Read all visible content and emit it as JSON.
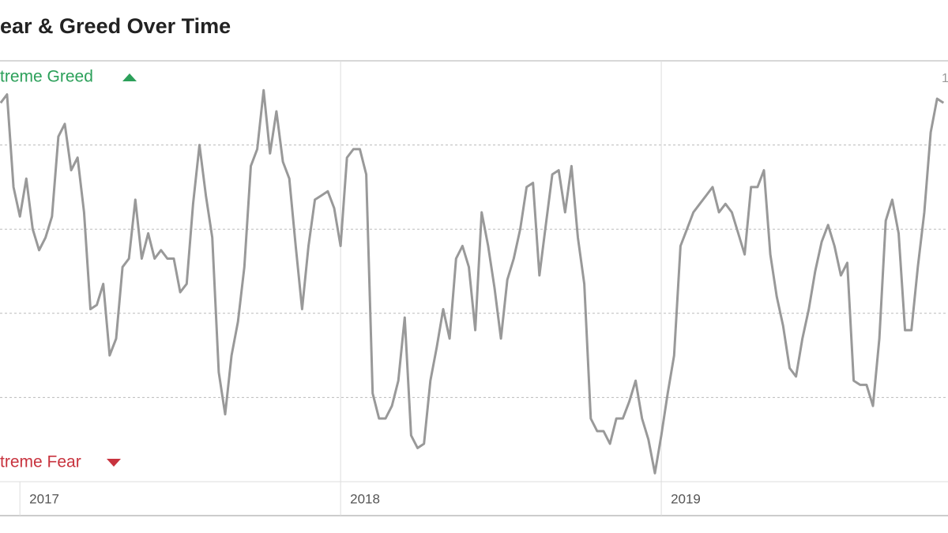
{
  "chart_data": {
    "type": "line",
    "title": "ear & Greed Over Time",
    "annotations": [
      "treme Greed",
      "treme Fear",
      "1"
    ],
    "xlim": [
      2016.938,
      2019.894
    ],
    "xticks": [
      2017,
      2018,
      2019
    ],
    "ylim": [
      0,
      100
    ],
    "yticks": [
      20,
      40,
      60,
      80
    ],
    "grid": true,
    "x": [
      2016.94,
      2016.96,
      2016.98,
      2017,
      2017.02,
      2017.04,
      2017.06,
      2017.08,
      2017.1,
      2017.12,
      2017.14,
      2017.16,
      2017.18,
      2017.2,
      2017.22,
      2017.24,
      2017.26,
      2017.28,
      2017.3,
      2017.32,
      2017.34,
      2017.36,
      2017.38,
      2017.4,
      2017.42,
      2017.44,
      2017.46,
      2017.48,
      2017.5,
      2017.52,
      2017.54,
      2017.56,
      2017.58,
      2017.6,
      2017.62,
      2017.64,
      2017.66,
      2017.68,
      2017.7,
      2017.72,
      2017.74,
      2017.76,
      2017.78,
      2017.8,
      2017.82,
      2017.84,
      2017.86,
      2017.88,
      2017.9,
      2017.92,
      2017.94,
      2017.96,
      2017.98,
      2018,
      2018.02,
      2018.04,
      2018.06,
      2018.08,
      2018.1,
      2018.12,
      2018.14,
      2018.16,
      2018.18,
      2018.2,
      2018.22,
      2018.24,
      2018.26,
      2018.28,
      2018.3,
      2018.32,
      2018.34,
      2018.36,
      2018.38,
      2018.4,
      2018.42,
      2018.44,
      2018.46,
      2018.48,
      2018.5,
      2018.52,
      2018.54,
      2018.56,
      2018.58,
      2018.6,
      2018.62,
      2018.64,
      2018.66,
      2018.68,
      2018.7,
      2018.72,
      2018.74,
      2018.76,
      2018.78,
      2018.8,
      2018.82,
      2018.84,
      2018.86,
      2018.88,
      2018.9,
      2018.92,
      2018.94,
      2018.96,
      2018.98,
      2019,
      2019.02,
      2019.04,
      2019.06,
      2019.08,
      2019.1,
      2019.12,
      2019.14,
      2019.16,
      2019.18,
      2019.2,
      2019.22,
      2019.24,
      2019.26,
      2019.28,
      2019.3,
      2019.32,
      2019.34,
      2019.36,
      2019.38,
      2019.4,
      2019.42,
      2019.44,
      2019.46,
      2019.48,
      2019.5,
      2019.52,
      2019.54,
      2019.56,
      2019.58,
      2019.6,
      2019.62,
      2019.64,
      2019.66,
      2019.68,
      2019.7,
      2019.72,
      2019.74,
      2019.76,
      2019.78,
      2019.8,
      2019.82,
      2019.84,
      2019.86,
      2019.88
    ],
    "series": [
      {
        "color": "#999999",
        "values": [
          90,
          92,
          70,
          63,
          72,
          60,
          55,
          58,
          63,
          82,
          85,
          74,
          77,
          64,
          41,
          42,
          47,
          30,
          34,
          51,
          53,
          67,
          53,
          59,
          53,
          55,
          53,
          53,
          45,
          47,
          66,
          80,
          68,
          58,
          26,
          16,
          30,
          38,
          51,
          75,
          79,
          93,
          78,
          88,
          76,
          72,
          56,
          41,
          56,
          67,
          68,
          69,
          65,
          56,
          77,
          79,
          79,
          73,
          21,
          15,
          15,
          18,
          24,
          39,
          11,
          8,
          9,
          24,
          32,
          41,
          34,
          53,
          56,
          51,
          36,
          64,
          56,
          46,
          34,
          48,
          53,
          60,
          70,
          71,
          49,
          61,
          73,
          74,
          64,
          75,
          58,
          47,
          15,
          12,
          12,
          9,
          15,
          15,
          19,
          24,
          15,
          10,
          2,
          11,
          21,
          30,
          56,
          60,
          64,
          66,
          68,
          70,
          64,
          66,
          64,
          59,
          54,
          70,
          70,
          74,
          54,
          44,
          37,
          27,
          25,
          34,
          41,
          50,
          57,
          61,
          56,
          49,
          52,
          24,
          23,
          23,
          18,
          34,
          62,
          67,
          59,
          36,
          36,
          51,
          64,
          83,
          91,
          90
        ]
      }
    ]
  }
}
